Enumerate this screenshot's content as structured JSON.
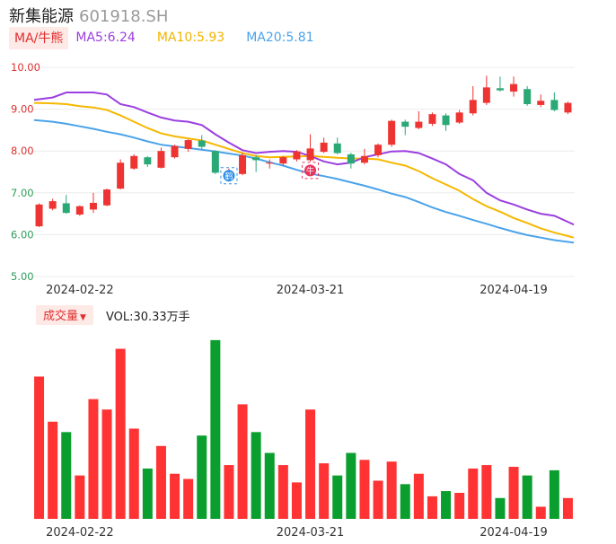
{
  "header": {
    "name": "新集能源",
    "code": "601918.SH"
  },
  "ma_legend": {
    "toggle_label": "MA/牛熊",
    "ma5": "MA5:6.24",
    "ma10": "MA10:5.93",
    "ma20": "MA20:5.81"
  },
  "volume_legend": {
    "toggle_label": "成交量",
    "caret": "▼",
    "value": "VOL:30.33万手"
  },
  "colors": {
    "up": "#ee3333",
    "down": "#2aa876",
    "vol_up": "#ff3333",
    "vol_down": "#0a9e2e",
    "ma5": "#9b3fe0",
    "ma10": "#f5b800",
    "ma20": "#4aa3ea"
  },
  "markers": [
    {
      "label": "鹤",
      "index": 14
    },
    {
      "label": "牛",
      "index": 20
    }
  ],
  "chart_data": {
    "type": "candlestick",
    "yticks": [
      "10.00",
      "9.00",
      "8.00",
      "7.00",
      "6.00",
      "5.00"
    ],
    "ylim": [
      5.0,
      10.0
    ],
    "xtick_labels": [
      {
        "index": 3,
        "label": "2024-02-22"
      },
      {
        "index": 20,
        "label": "2024-03-21"
      },
      {
        "index": 35,
        "label": "2024-04-19"
      }
    ],
    "candles": [
      {
        "o": 6.2,
        "c": 6.72,
        "h": 6.75,
        "l": 6.18
      },
      {
        "o": 6.62,
        "c": 6.8,
        "h": 6.86,
        "l": 6.58
      },
      {
        "o": 6.75,
        "c": 6.52,
        "h": 6.95,
        "l": 6.5
      },
      {
        "o": 6.48,
        "c": 6.68,
        "h": 6.7,
        "l": 6.45
      },
      {
        "o": 6.6,
        "c": 6.76,
        "h": 7.0,
        "l": 6.52
      },
      {
        "o": 6.7,
        "c": 7.08,
        "h": 7.1,
        "l": 6.68
      },
      {
        "o": 7.1,
        "c": 7.72,
        "h": 7.8,
        "l": 7.08
      },
      {
        "o": 7.58,
        "c": 7.88,
        "h": 7.92,
        "l": 7.55
      },
      {
        "o": 7.85,
        "c": 7.68,
        "h": 7.88,
        "l": 7.62
      },
      {
        "o": 7.6,
        "c": 8.0,
        "h": 8.08,
        "l": 7.58
      },
      {
        "o": 7.85,
        "c": 8.12,
        "h": 8.15,
        "l": 7.82
      },
      {
        "o": 8.05,
        "c": 8.26,
        "h": 8.28,
        "l": 7.98
      },
      {
        "o": 8.25,
        "c": 8.1,
        "h": 8.38,
        "l": 8.05
      },
      {
        "o": 8.0,
        "c": 7.48,
        "h": 8.02,
        "l": 7.45
      },
      {
        "o": 7.42,
        "c": 7.52,
        "h": 7.58,
        "l": 7.35
      },
      {
        "o": 7.45,
        "c": 7.9,
        "h": 7.96,
        "l": 7.42
      },
      {
        "o": 7.85,
        "c": 7.78,
        "h": 7.9,
        "l": 7.5
      },
      {
        "o": 7.7,
        "c": 7.72,
        "h": 7.8,
        "l": 7.58
      },
      {
        "o": 7.7,
        "c": 7.85,
        "h": 7.88,
        "l": 7.65
      },
      {
        "o": 7.8,
        "c": 7.99,
        "h": 8.02,
        "l": 7.75
      },
      {
        "o": 7.78,
        "c": 8.06,
        "h": 8.4,
        "l": 7.75
      },
      {
        "o": 7.98,
        "c": 8.2,
        "h": 8.32,
        "l": 7.95
      },
      {
        "o": 8.18,
        "c": 7.95,
        "h": 8.32,
        "l": 7.92
      },
      {
        "o": 7.92,
        "c": 7.7,
        "h": 7.96,
        "l": 7.58
      },
      {
        "o": 7.72,
        "c": 7.88,
        "h": 8.05,
        "l": 7.68
      },
      {
        "o": 7.9,
        "c": 8.15,
        "h": 8.18,
        "l": 7.85
      },
      {
        "o": 8.15,
        "c": 8.72,
        "h": 8.75,
        "l": 8.1
      },
      {
        "o": 8.7,
        "c": 8.58,
        "h": 8.75,
        "l": 8.38
      },
      {
        "o": 8.55,
        "c": 8.7,
        "h": 8.95,
        "l": 8.52
      },
      {
        "o": 8.65,
        "c": 8.88,
        "h": 8.92,
        "l": 8.6
      },
      {
        "o": 8.85,
        "c": 8.62,
        "h": 8.9,
        "l": 8.48
      },
      {
        "o": 8.68,
        "c": 8.92,
        "h": 8.98,
        "l": 8.65
      },
      {
        "o": 8.9,
        "c": 9.22,
        "h": 9.55,
        "l": 8.85
      },
      {
        "o": 9.15,
        "c": 9.52,
        "h": 9.8,
        "l": 9.1
      },
      {
        "o": 9.5,
        "c": 9.45,
        "h": 9.78,
        "l": 9.42
      },
      {
        "o": 9.42,
        "c": 9.6,
        "h": 9.78,
        "l": 9.3
      },
      {
        "o": 9.48,
        "c": 9.12,
        "h": 9.55,
        "l": 9.08
      },
      {
        "o": 9.1,
        "c": 9.2,
        "h": 9.35,
        "l": 9.05
      },
      {
        "o": 9.22,
        "c": 8.98,
        "h": 9.4,
        "l": 8.95
      },
      {
        "o": 8.92,
        "c": 9.15,
        "h": 9.18,
        "l": 8.88
      }
    ],
    "ma5": [
      9.22,
      9.28,
      9.4,
      9.4,
      9.4,
      9.35,
      9.12,
      9.05,
      8.92,
      8.8,
      8.73,
      8.7,
      8.62,
      8.4,
      8.2,
      8.02,
      7.95,
      7.98,
      8.0,
      7.98,
      7.88,
      7.75,
      7.68,
      7.72,
      7.85,
      7.92,
      7.99,
      8.0,
      7.95,
      7.82,
      7.68,
      7.45,
      7.3,
      7.0,
      6.82,
      6.72,
      6.6,
      6.5,
      6.45,
      6.24
    ],
    "ma10": [
      9.15,
      9.14,
      9.12,
      9.07,
      9.04,
      8.98,
      8.85,
      8.7,
      8.55,
      8.42,
      8.35,
      8.3,
      8.25,
      8.15,
      8.05,
      7.95,
      7.88,
      7.85,
      7.86,
      7.87,
      7.88,
      7.86,
      7.84,
      7.82,
      7.82,
      7.8,
      7.72,
      7.65,
      7.52,
      7.35,
      7.2,
      7.05,
      6.85,
      6.68,
      6.55,
      6.4,
      6.28,
      6.15,
      6.05,
      5.93
    ],
    "ma20": [
      8.74,
      8.7,
      8.65,
      8.59,
      8.53,
      8.46,
      8.4,
      8.32,
      8.23,
      8.15,
      8.11,
      8.07,
      8.03,
      7.99,
      7.94,
      7.89,
      7.82,
      7.73,
      7.65,
      7.55,
      7.46,
      7.4,
      7.33,
      7.25,
      7.17,
      7.08,
      6.98,
      6.9,
      6.78,
      6.65,
      6.54,
      6.45,
      6.35,
      6.26,
      6.16,
      6.07,
      5.99,
      5.93,
      5.87,
      5.81
    ],
    "volume": [
      {
        "v": 82,
        "up": true
      },
      {
        "v": 56,
        "up": true
      },
      {
        "v": 50,
        "up": false
      },
      {
        "v": 25,
        "up": true
      },
      {
        "v": 69,
        "up": true
      },
      {
        "v": 63,
        "up": true
      },
      {
        "v": 98,
        "up": true
      },
      {
        "v": 52,
        "up": true
      },
      {
        "v": 29,
        "up": false
      },
      {
        "v": 42,
        "up": true
      },
      {
        "v": 26,
        "up": true
      },
      {
        "v": 23,
        "up": true
      },
      {
        "v": 48,
        "up": false
      },
      {
        "v": 103,
        "up": false
      },
      {
        "v": 31,
        "up": true
      },
      {
        "v": 66,
        "up": true
      },
      {
        "v": 50,
        "up": false
      },
      {
        "v": 38,
        "up": false
      },
      {
        "v": 31,
        "up": true
      },
      {
        "v": 21,
        "up": true
      },
      {
        "v": 63,
        "up": true
      },
      {
        "v": 32,
        "up": true
      },
      {
        "v": 25,
        "up": false
      },
      {
        "v": 38,
        "up": false
      },
      {
        "v": 34,
        "up": true
      },
      {
        "v": 22,
        "up": true
      },
      {
        "v": 33,
        "up": true
      },
      {
        "v": 20,
        "up": false
      },
      {
        "v": 26,
        "up": true
      },
      {
        "v": 13,
        "up": true
      },
      {
        "v": 16,
        "up": false
      },
      {
        "v": 15,
        "up": true
      },
      {
        "v": 29,
        "up": true
      },
      {
        "v": 31,
        "up": true
      },
      {
        "v": 12,
        "up": false
      },
      {
        "v": 30,
        "up": true
      },
      {
        "v": 25,
        "up": false
      },
      {
        "v": 7,
        "up": true
      },
      {
        "v": 28,
        "up": false
      },
      {
        "v": 12,
        "up": true
      }
    ]
  }
}
